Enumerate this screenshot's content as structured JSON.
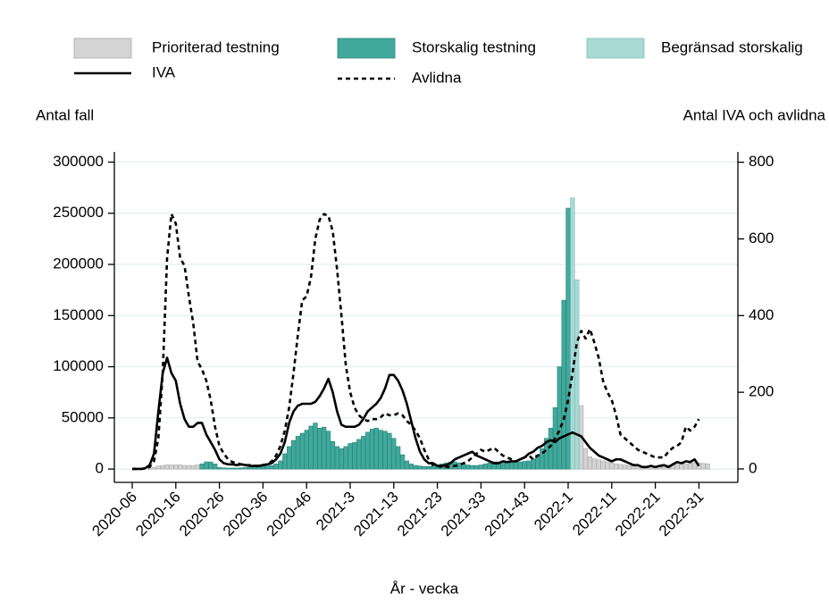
{
  "chart_data": {
    "type": "combo",
    "ylabel": "Antal fall",
    "y2label": "Antal IVA och avlidna",
    "xlabel": "År - vecka",
    "categories": [
      "2020-06",
      null,
      null,
      null,
      null,
      null,
      null,
      null,
      null,
      null,
      "2020-16",
      null,
      null,
      null,
      null,
      null,
      null,
      null,
      null,
      null,
      "2020-26",
      null,
      null,
      null,
      null,
      null,
      null,
      null,
      null,
      null,
      "2020-36",
      null,
      null,
      null,
      null,
      null,
      null,
      null,
      null,
      null,
      "2020-46",
      null,
      null,
      null,
      null,
      null,
      null,
      null,
      null,
      null,
      "2021-3",
      null,
      null,
      null,
      null,
      null,
      null,
      null,
      null,
      null,
      "2021-13",
      null,
      null,
      null,
      null,
      null,
      null,
      null,
      null,
      null,
      "2021-23",
      null,
      null,
      null,
      null,
      null,
      null,
      null,
      null,
      null,
      "2021-33",
      null,
      null,
      null,
      null,
      null,
      null,
      null,
      null,
      null,
      "2021-43",
      null,
      null,
      null,
      null,
      null,
      null,
      null,
      null,
      null,
      "2022-1",
      null,
      null,
      null,
      null,
      null,
      null,
      null,
      null,
      null,
      "2022-11",
      null,
      null,
      null,
      null,
      null,
      null,
      null,
      null,
      null,
      "2022-21",
      null,
      null,
      null,
      null,
      null,
      null,
      null,
      null,
      null,
      "2022-31",
      null,
      null
    ],
    "ylim": [
      -13000,
      310000
    ],
    "yticks": [
      0,
      50000,
      100000,
      150000,
      200000,
      250000,
      300000
    ],
    "y2lim": [
      -35,
      827
    ],
    "y2ticks": [
      0,
      200,
      400,
      600,
      800
    ],
    "grid": true,
    "series": [
      {
        "name": "Prioriterad testning",
        "type": "bar",
        "color": "#d4d4d4",
        "values": [
          0,
          0,
          0,
          0,
          500,
          1500,
          3000,
          3500,
          4000,
          4000,
          4000,
          4000,
          3500,
          3500,
          3500,
          4000,
          null,
          null,
          null,
          null,
          null,
          null,
          null,
          null,
          null,
          null,
          null,
          null,
          null,
          null,
          null,
          null,
          null,
          null,
          null,
          null,
          null,
          null,
          null,
          null,
          null,
          null,
          null,
          null,
          null,
          null,
          null,
          null,
          null,
          null,
          null,
          null,
          null,
          null,
          null,
          null,
          null,
          null,
          null,
          null,
          null,
          null,
          null,
          null,
          null,
          null,
          null,
          null,
          null,
          null,
          null,
          null,
          null,
          null,
          null,
          null,
          null,
          null,
          null,
          null,
          null,
          null,
          null,
          null,
          null,
          null,
          null,
          null,
          null,
          null,
          null,
          null,
          null,
          null,
          null,
          null,
          null,
          null,
          null,
          null,
          null,
          null,
          null,
          62000,
          20000,
          12000,
          10000,
          9000,
          8000,
          7000,
          6000,
          5000,
          4500,
          4000,
          3500,
          3000,
          3000,
          2500,
          2500,
          3000,
          3000,
          3500,
          3500,
          4000,
          4000,
          4500,
          5000,
          5000,
          5500,
          6000,
          6000,
          5500,
          5000
        ]
      },
      {
        "name": "Storskalig testning",
        "type": "bar",
        "color": "#40a99c",
        "values": [
          null,
          null,
          null,
          null,
          null,
          null,
          null,
          null,
          null,
          null,
          null,
          null,
          null,
          null,
          null,
          null,
          5000,
          7000,
          7000,
          5000,
          1500,
          1200,
          1000,
          1000,
          1000,
          1200,
          1500,
          1500,
          2000,
          2000,
          2500,
          3000,
          3500,
          5000,
          8000,
          15000,
          22000,
          28000,
          32000,
          35000,
          38000,
          42000,
          45000,
          40000,
          41000,
          37000,
          27000,
          22000,
          20000,
          22000,
          25000,
          26000,
          29000,
          32000,
          36000,
          39000,
          40000,
          38000,
          37000,
          35000,
          30000,
          22000,
          14000,
          8000,
          5000,
          3500,
          3000,
          2500,
          2500,
          3000,
          4000,
          5000,
          6000,
          7000,
          7000,
          6000,
          5000,
          4000,
          3500,
          3500,
          4000,
          5000,
          6000,
          7000,
          7000,
          6500,
          6000,
          6000,
          6500,
          7000,
          7500,
          8000,
          10000,
          14000,
          20000,
          30000,
          40000,
          60000,
          100000,
          165000,
          255000,
          null,
          null,
          null,
          null,
          null,
          null,
          null,
          null,
          null,
          null,
          null,
          null,
          null,
          null,
          null,
          null,
          null,
          null,
          null,
          null,
          null,
          null,
          null,
          null,
          null,
          null,
          null,
          null,
          null,
          null,
          null,
          null
        ]
      },
      {
        "name": "Begränsad storskalig",
        "type": "bar",
        "color": "#a8d9d4",
        "values": [
          null,
          null,
          null,
          null,
          null,
          null,
          null,
          null,
          null,
          null,
          null,
          null,
          null,
          null,
          null,
          null,
          null,
          null,
          null,
          null,
          null,
          null,
          null,
          null,
          null,
          null,
          null,
          null,
          null,
          null,
          null,
          null,
          null,
          null,
          null,
          null,
          null,
          null,
          null,
          null,
          null,
          null,
          null,
          null,
          null,
          null,
          null,
          null,
          null,
          null,
          null,
          null,
          null,
          null,
          null,
          null,
          null,
          null,
          null,
          null,
          null,
          null,
          null,
          null,
          null,
          null,
          null,
          null,
          null,
          null,
          null,
          null,
          null,
          null,
          null,
          null,
          null,
          null,
          null,
          null,
          null,
          null,
          null,
          null,
          null,
          null,
          null,
          null,
          null,
          null,
          null,
          null,
          null,
          null,
          null,
          null,
          null,
          null,
          null,
          null,
          null,
          265000,
          185000,
          null,
          null,
          null,
          null,
          null,
          null,
          null,
          null,
          null,
          null,
          null,
          null,
          null,
          null,
          null,
          null,
          null,
          null,
          null,
          null,
          null,
          null,
          null,
          null,
          null,
          null,
          null,
          null,
          null,
          null
        ]
      },
      {
        "name": "IVA",
        "type": "line",
        "axis": "y2",
        "style": "solid",
        "color": "#000000",
        "values": [
          0,
          0,
          0,
          2,
          10,
          40,
          150,
          250,
          290,
          250,
          230,
          170,
          130,
          110,
          110,
          120,
          120,
          90,
          70,
          50,
          25,
          15,
          12,
          12,
          10,
          12,
          10,
          8,
          8,
          8,
          10,
          12,
          15,
          25,
          40,
          70,
          120,
          150,
          165,
          170,
          170,
          170,
          175,
          190,
          210,
          235,
          200,
          150,
          115,
          110,
          110,
          110,
          115,
          130,
          150,
          160,
          170,
          185,
          210,
          245,
          245,
          230,
          205,
          170,
          125,
          80,
          45,
          25,
          15,
          15,
          8,
          8,
          10,
          15,
          25,
          30,
          35,
          40,
          45,
          35,
          30,
          25,
          20,
          15,
          15,
          20,
          18,
          20,
          20,
          25,
          30,
          40,
          45,
          55,
          60,
          70,
          75,
          70,
          80,
          85,
          90,
          95,
          90,
          85,
          70,
          55,
          45,
          35,
          30,
          25,
          20,
          25,
          25,
          20,
          15,
          10,
          10,
          5,
          5,
          8,
          5,
          8,
          10,
          5,
          12,
          18,
          15,
          20,
          18,
          25,
          8,
          null,
          null
        ]
      },
      {
        "name": "Avlidna",
        "type": "line",
        "axis": "y2",
        "style": "dashed",
        "color": "#000000",
        "values": [
          0,
          0,
          0,
          1,
          5,
          20,
          80,
          250,
          550,
          665,
          640,
          550,
          530,
          450,
          380,
          280,
          260,
          230,
          180,
          110,
          60,
          40,
          25,
          18,
          15,
          12,
          10,
          10,
          8,
          8,
          10,
          12,
          20,
          35,
          60,
          100,
          160,
          250,
          350,
          440,
          450,
          500,
          600,
          650,
          665,
          660,
          620,
          520,
          400,
          270,
          200,
          160,
          140,
          130,
          125,
          130,
          130,
          135,
          145,
          140,
          140,
          145,
          140,
          125,
          115,
          100,
          80,
          50,
          25,
          10,
          8,
          5,
          5,
          5,
          8,
          10,
          15,
          20,
          30,
          40,
          50,
          45,
          50,
          55,
          45,
          35,
          30,
          25,
          20,
          25,
          30,
          35,
          25,
          35,
          40,
          50,
          60,
          80,
          100,
          130,
          180,
          250,
          330,
          360,
          340,
          365,
          330,
          290,
          230,
          200,
          180,
          140,
          90,
          80,
          70,
          60,
          50,
          45,
          40,
          35,
          30,
          30,
          30,
          45,
          55,
          60,
          70,
          110,
          100,
          110,
          130,
          null,
          null
        ]
      }
    ]
  }
}
